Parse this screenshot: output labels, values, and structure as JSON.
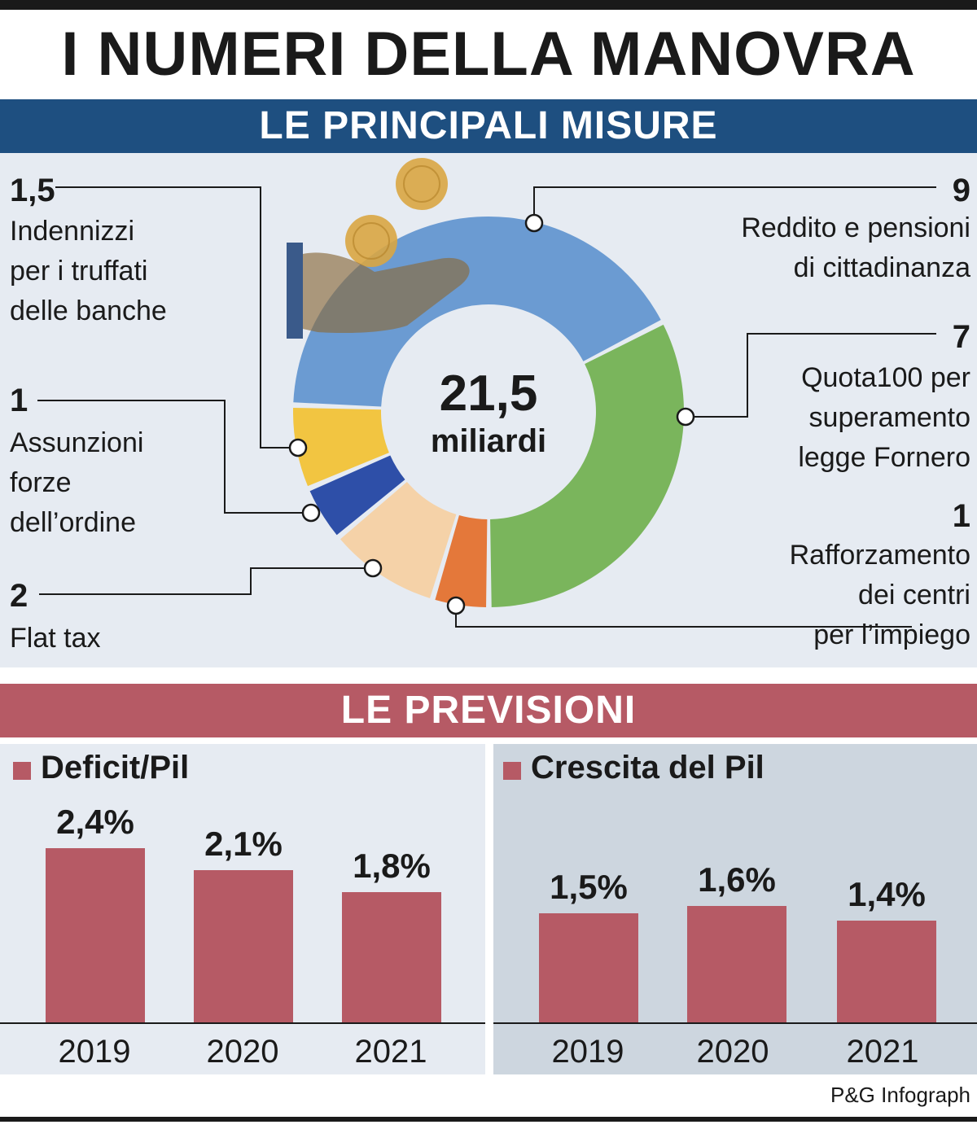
{
  "title": "I NUMERI DELLA MANOVRA",
  "section_measures": "LE PRINCIPALI MISURE",
  "section_forecast": "LE PREVISIONI",
  "colors": {
    "header_blue": "#1e4f80",
    "header_red": "#b65a65",
    "bar": "#b65a65",
    "panel_light": "#e6ebf2",
    "panel_dark": "#cdd6df"
  },
  "donut": {
    "total_value": "21,5",
    "total_unit": "miliardi",
    "icon": "hand-coins-icon"
  },
  "measures": {
    "indennizzi": {
      "value": "1,5",
      "lines": [
        "Indennizzi",
        "per i truffati",
        "delle banche"
      ]
    },
    "assunzioni": {
      "value": "1",
      "lines": [
        "Assunzioni",
        "forze",
        "dell’ordine"
      ]
    },
    "flat_tax": {
      "value": "2",
      "lines": [
        "Flat tax"
      ]
    },
    "reddito": {
      "value": "9",
      "lines": [
        "Reddito e pensioni",
        "di cittadinanza"
      ]
    },
    "quota100": {
      "value": "7",
      "lines": [
        "Quota100 per",
        "superamento",
        "legge Fornero"
      ]
    },
    "centri": {
      "value": "1",
      "lines": [
        "Rafforzamento",
        "dei centri",
        "per l’impiego"
      ]
    }
  },
  "deficit": {
    "title": "Deficit/Pil",
    "years": [
      "2019",
      "2020",
      "2021"
    ],
    "labels": [
      "2,4%",
      "2,1%",
      "1,8%"
    ]
  },
  "growth": {
    "title": "Crescita del Pil",
    "years": [
      "2019",
      "2020",
      "2021"
    ],
    "labels": [
      "1,5%",
      "1,6%",
      "1,4%"
    ]
  },
  "credit": "P&G Infograph",
  "chart_data": [
    {
      "type": "pie",
      "title": "LE PRINCIPALI MISURE",
      "total": 21.5,
      "unit": "miliardi",
      "slices": [
        {
          "name": "Reddito e pensioni di cittadinanza",
          "value": 9,
          "color": "#6b9bd2"
        },
        {
          "name": "Quota100 per superamento legge Fornero",
          "value": 7,
          "color": "#7ab55c"
        },
        {
          "name": "Rafforzamento dei centri per l’impiego",
          "value": 1,
          "color": "#e4783a"
        },
        {
          "name": "Flat tax",
          "value": 2,
          "color": "#f5d2a8"
        },
        {
          "name": "Assunzioni forze dell’ordine",
          "value": 1,
          "color": "#2e4fa8"
        },
        {
          "name": "Indennizzi per i truffati delle banche",
          "value": 1.5,
          "color": "#f2c541"
        }
      ]
    },
    {
      "type": "bar",
      "title": "Deficit/Pil",
      "categories": [
        "2019",
        "2020",
        "2021"
      ],
      "values": [
        2.4,
        2.1,
        1.8
      ],
      "ylim": [
        0,
        2.4
      ]
    },
    {
      "type": "bar",
      "title": "Crescita del Pil",
      "categories": [
        "2019",
        "2020",
        "2021"
      ],
      "values": [
        1.5,
        1.6,
        1.4
      ],
      "ylim": [
        0,
        2.4
      ]
    }
  ]
}
